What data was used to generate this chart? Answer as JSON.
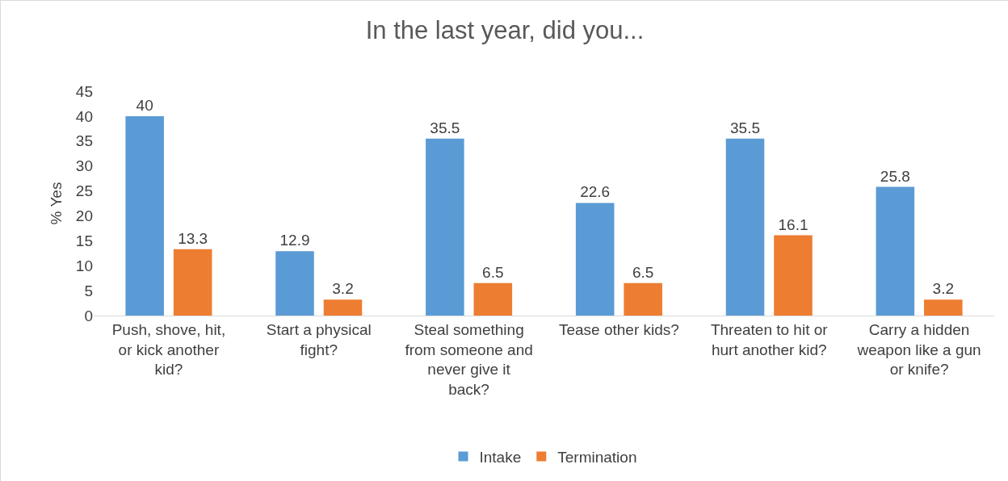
{
  "chart_data": {
    "type": "bar",
    "title": "In the last year, did you...",
    "ylabel": "% Yes",
    "categories": [
      "Push, shove, hit, or kick another kid?",
      "Start a physical fight?",
      "Steal something from someone and never give it back?",
      "Tease other kids?",
      "Threaten to hit or hurt another kid?",
      "Carry a hidden weapon like a gun or knife?"
    ],
    "series": [
      {
        "name": "Intake",
        "color": "#5b9bd5",
        "values": [
          40,
          12.9,
          35.5,
          22.6,
          35.5,
          25.8
        ]
      },
      {
        "name": "Termination",
        "color": "#ed7d31",
        "values": [
          13.3,
          3.2,
          6.5,
          6.5,
          16.1,
          3.2
        ]
      }
    ],
    "ylim": [
      0,
      45
    ],
    "yticks": [
      0,
      5,
      10,
      15,
      20,
      25,
      30,
      35,
      40,
      45
    ],
    "grid": false,
    "legend": "bottom",
    "data_labels": true
  }
}
